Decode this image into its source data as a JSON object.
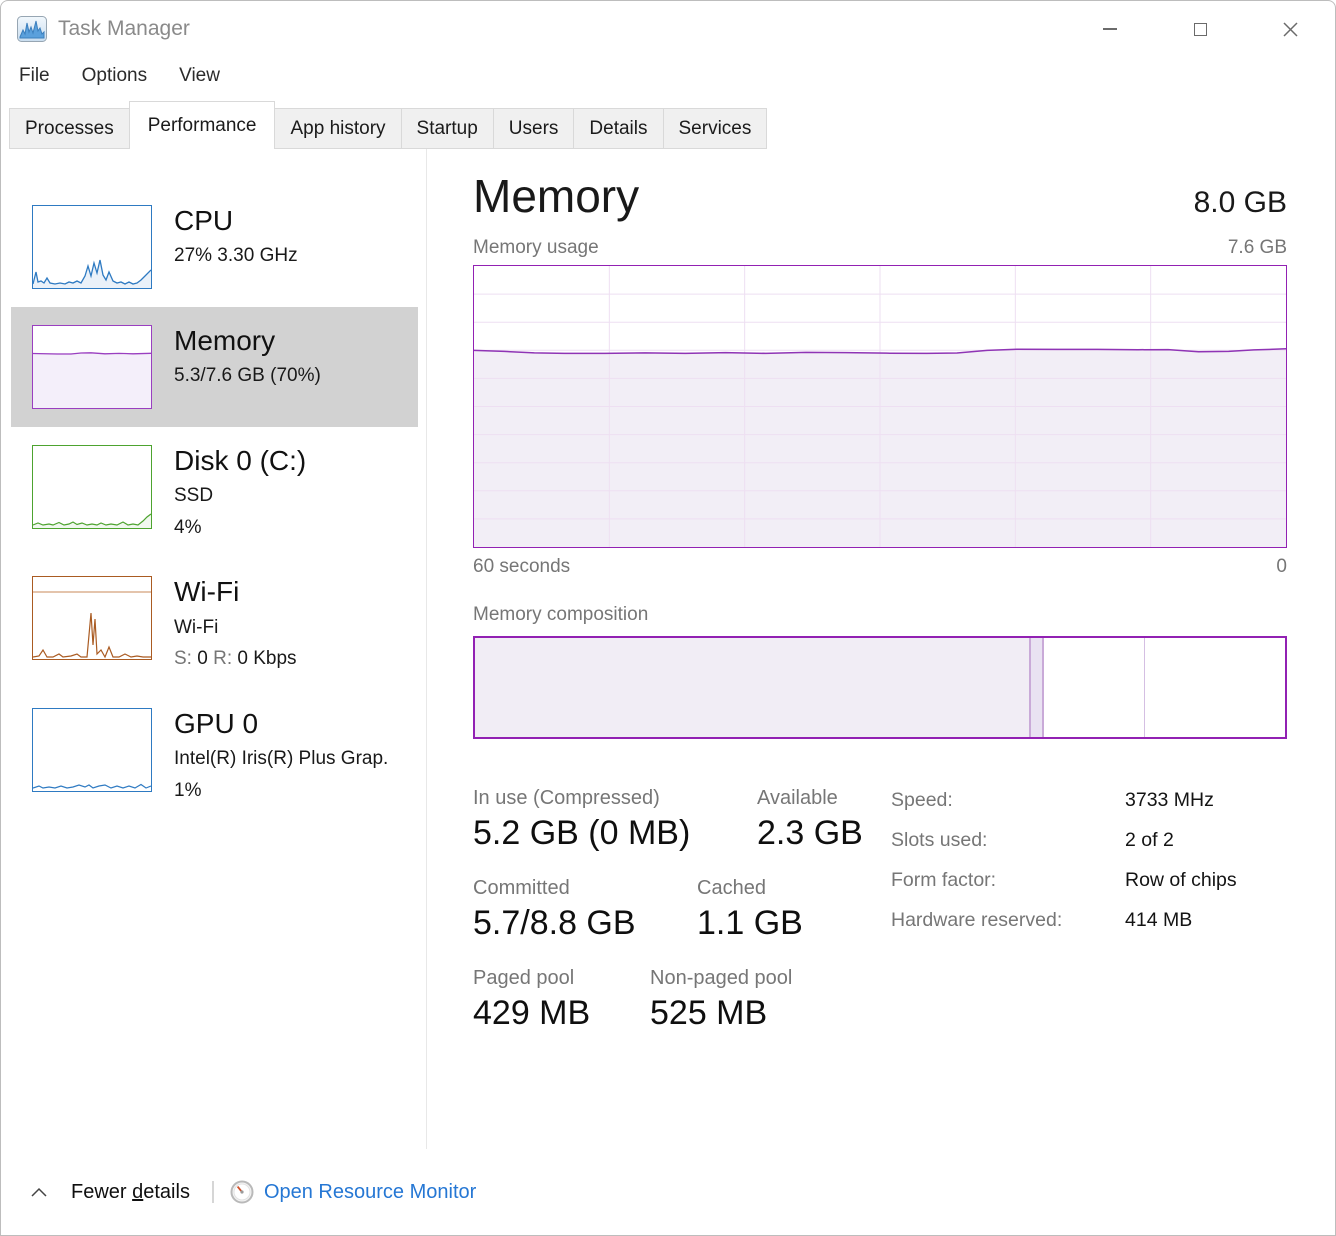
{
  "window": {
    "title": "Task Manager"
  },
  "menu": {
    "items": [
      "File",
      "Options",
      "View"
    ]
  },
  "tabs": {
    "labels": [
      "Processes",
      "Performance",
      "App history",
      "Startup",
      "Users",
      "Details",
      "Services"
    ],
    "active": "Performance"
  },
  "sidebar": {
    "cpu": {
      "title": "CPU",
      "sub": "27% 3.30 GHz"
    },
    "memory": {
      "title": "Memory",
      "sub": "5.3/7.6 GB (70%)"
    },
    "disk": {
      "title": "Disk 0 (C:)",
      "sub1": "SSD",
      "sub2": "4%"
    },
    "wifi": {
      "title": "Wi-Fi",
      "sub1": "Wi-Fi",
      "s_label": "S:",
      "s_value": "0",
      "r_label": "R:",
      "r_value": "0 Kbps"
    },
    "gpu": {
      "title": "GPU 0",
      "sub1": "Intel(R) Iris(R) Plus Grap.",
      "sub2": "1%"
    }
  },
  "main": {
    "title": "Memory",
    "total_capacity": "8.0 GB",
    "usage_section_label": "Memory usage",
    "usage_axis_top": "7.6 GB",
    "usage_axis_left": "60 seconds",
    "usage_axis_right": "0",
    "usage_percent": 70,
    "composition_section_label": "Memory composition",
    "composition_segments": [
      {
        "name": "in-use",
        "percent": 68.6
      },
      {
        "name": "modified",
        "percent": 1.7
      },
      {
        "name": "standby",
        "percent": 12.4
      },
      {
        "name": "free",
        "percent": 17.3
      }
    ],
    "stats": [
      {
        "label": "In use (Compressed)",
        "value": "5.2 GB (0 MB)"
      },
      {
        "label": "Available",
        "value": "2.3 GB"
      },
      {
        "label": "Committed",
        "value": "5.7/8.8 GB"
      },
      {
        "label": "Cached",
        "value": "1.1 GB"
      },
      {
        "label": "Paged pool",
        "value": "429 MB"
      },
      {
        "label": "Non-paged pool",
        "value": "525 MB"
      }
    ],
    "details": [
      {
        "label": "Speed:",
        "value": "3733 MHz"
      },
      {
        "label": "Slots used:",
        "value": "2 of 2"
      },
      {
        "label": "Form factor:",
        "value": "Row of chips"
      },
      {
        "label": "Hardware reserved:",
        "value": "414 MB"
      }
    ]
  },
  "footer": {
    "fewer_details_prefix": "Fewer ",
    "fewer_details_accesskey": "d",
    "fewer_details_suffix": "etails",
    "open_resource_monitor": "Open Resource Monitor"
  },
  "colors": {
    "accent_purple": "#9221b3",
    "chart_line_purple": "#8f34b5",
    "chart_fill_lavender": "#f2eef6",
    "cpu_blue": "#2e7ac2",
    "disk_green": "#4da32f",
    "wifi_brown": "#aa5b22",
    "link_blue": "#2577d4",
    "selected_item_gray": "#d2d2d2"
  }
}
